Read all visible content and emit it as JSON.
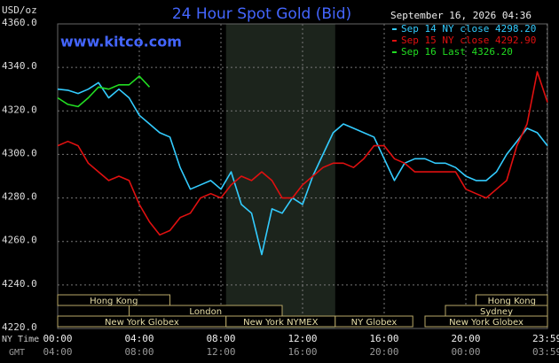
{
  "chart_data": {
    "type": "line",
    "title": "24 Hour Spot Gold (Bid)",
    "url": "www.kitco.com",
    "timestamp": "September 16, 2026 04:36",
    "y_label": "USD/oz",
    "x_label": "NY Time",
    "x2_label": "GMT",
    "xlim": [
      0,
      24
    ],
    "ylim": [
      4220,
      4360
    ],
    "yticks": [
      {
        "value": 4220,
        "label": "4220.0"
      },
      {
        "value": 4240,
        "label": "4240.0"
      },
      {
        "value": 4260,
        "label": "4260.0"
      },
      {
        "value": 4280,
        "label": "4280.0"
      },
      {
        "value": 4300,
        "label": "4300.0"
      },
      {
        "value": 4320,
        "label": "4320.0"
      },
      {
        "value": 4340,
        "label": "4340.0"
      },
      {
        "value": 4360,
        "label": "4360.0"
      }
    ],
    "xticks": [
      {
        "value": 0,
        "label": "00:00"
      },
      {
        "value": 4,
        "label": "04:00"
      },
      {
        "value": 8,
        "label": "08:00"
      },
      {
        "value": 12,
        "label": "12:00"
      },
      {
        "value": 16,
        "label": "16:00"
      },
      {
        "value": 20,
        "label": "20:00"
      },
      {
        "value": 23.98,
        "label": "23:59"
      }
    ],
    "x2ticks": [
      {
        "value": 0,
        "label": "04:00"
      },
      {
        "value": 4,
        "label": "08:00"
      },
      {
        "value": 8,
        "label": "12:00"
      },
      {
        "value": 12,
        "label": "16:00"
      },
      {
        "value": 16,
        "label": "20:00"
      },
      {
        "value": 20,
        "label": "00:00"
      },
      {
        "value": 23.98,
        "label": "03:59"
      }
    ],
    "grid": true,
    "shaded": [
      8.25,
      13.6
    ],
    "sessions": [
      [
        {
          "label": "Hong Kong",
          "start": 0,
          "end": 5.5
        },
        {
          "label": "Hong Kong",
          "start": 20.5,
          "end": 24
        }
      ],
      [
        {
          "label": "London",
          "start": 3.5,
          "end": 11
        },
        {
          "label": "Sydney",
          "start": 19,
          "end": 24
        }
      ],
      [
        {
          "label": "New York Globex",
          "start": 0,
          "end": 8.25
        },
        {
          "label": "New York NYMEX",
          "start": 8.25,
          "end": 13.6
        },
        {
          "label": "NY Globex",
          "start": 13.6,
          "end": 17.4
        },
        {
          "label": "New York Globex",
          "start": 18,
          "end": 24
        }
      ]
    ],
    "x": [
      0,
      0.5,
      1,
      1.5,
      2,
      2.5,
      3,
      3.5,
      4,
      4.5,
      5,
      5.5,
      6,
      6.5,
      7,
      7.5,
      8,
      8.5,
      9,
      9.5,
      10,
      10.5,
      11,
      11.5,
      12,
      12.5,
      13,
      13.5,
      14,
      14.5,
      15,
      15.5,
      16,
      16.5,
      17,
      17.5,
      18,
      18.5,
      19,
      19.5,
      20,
      20.5,
      21,
      21.5,
      22,
      22.5,
      23,
      23.5,
      24
    ],
    "series": [
      {
        "name": "Sep 14 NY close 4298.20",
        "color": "#33ccff",
        "values": [
          4330,
          4329.5,
          4328,
          4330,
          4333,
          4326,
          4330,
          4326,
          4318,
          4314,
          4310,
          4308,
          4294,
          4284,
          4286,
          4288,
          4284,
          4292,
          4277,
          4273,
          4254,
          4275,
          4273,
          4280,
          4277,
          4290,
          4300,
          4310,
          4314,
          4312,
          4310,
          4308,
          4298,
          4288,
          4296,
          4298,
          4298,
          4296,
          4296,
          4294,
          4290,
          4288,
          4288,
          4292,
          4300,
          4306,
          4312,
          4310,
          4304
        ]
      },
      {
        "name": "Sep 15 NY close 4292.90",
        "color": "#e01010",
        "values": [
          4304,
          4306,
          4304,
          4296,
          4292,
          4288,
          4290,
          4288,
          4277,
          4269,
          4263,
          4265,
          4271,
          4273,
          4280,
          4282,
          4280,
          4286,
          4290,
          4288,
          4292,
          4288,
          4280,
          4280,
          4286,
          4290,
          4294,
          4296,
          4296,
          4294,
          4298,
          4304,
          4304,
          4298,
          4296,
          4292,
          4292,
          4292,
          4292,
          4292,
          4284,
          4282,
          4280,
          4284,
          4288,
          4304,
          4314,
          4338,
          4324
        ]
      },
      {
        "name": "Sep 16 Last 4326.20",
        "color": "#22dd22",
        "values": [
          4326,
          4323,
          4322,
          4326,
          4331,
          4330,
          4332,
          4332,
          4336,
          4331,
          null,
          null,
          null,
          null,
          null,
          null,
          null,
          null,
          null,
          null,
          null,
          null,
          null,
          null,
          null,
          null,
          null,
          null,
          null,
          null,
          null,
          null,
          null,
          null,
          null,
          null,
          null,
          null,
          null,
          null,
          null,
          null,
          null,
          null,
          null,
          null,
          null,
          null,
          null
        ]
      }
    ]
  }
}
